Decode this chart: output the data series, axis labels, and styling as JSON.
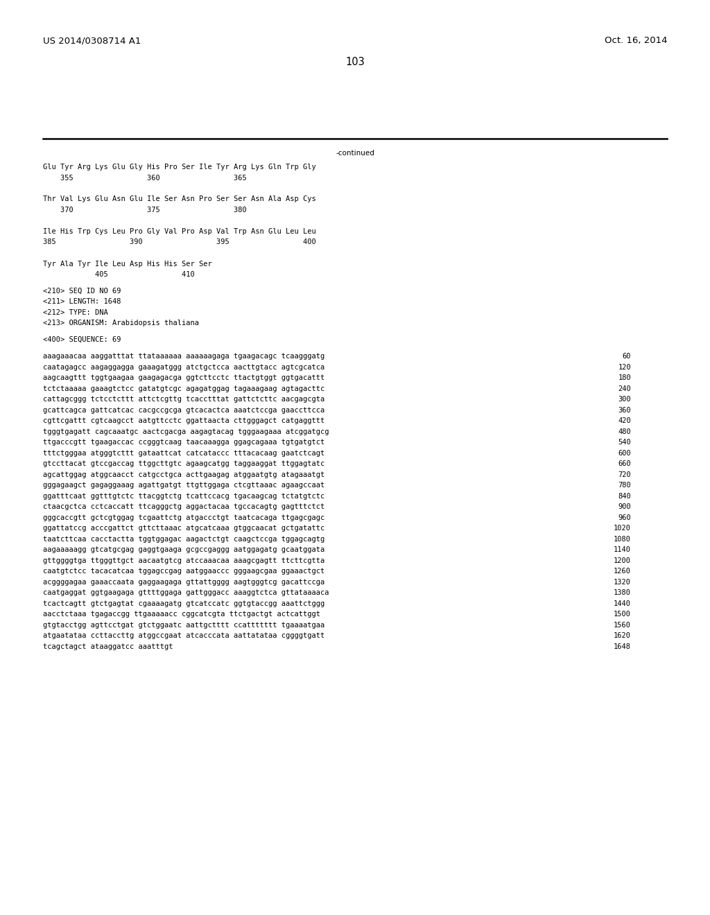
{
  "header_left": "US 2014/0308714 A1",
  "header_right": "Oct. 16, 2014",
  "page_number": "103",
  "continued_label": "-continued",
  "background_color": "#ffffff",
  "font_size_header": 9.5,
  "font_size_body": 7.5,
  "font_size_page": 10.5,
  "protein_lines": [
    "Glu Tyr Arg Lys Glu Gly His Pro Ser Ile Tyr Arg Lys Gln Trp Gly",
    "    355                 360                 365",
    "",
    "Thr Val Lys Glu Asn Glu Ile Ser Asn Pro Ser Ser Asn Ala Asp Cys",
    "    370                 375                 380",
    "",
    "Ile His Trp Cys Leu Pro Gly Val Pro Asp Val Trp Asn Glu Leu Leu",
    "385                 390                 395                 400",
    "",
    "Tyr Ala Tyr Ile Leu Asp His His Ser Ser",
    "            405                 410"
  ],
  "metadata_lines": [
    "<210> SEQ ID NO 69",
    "<211> LENGTH: 1648",
    "<212> TYPE: DNA",
    "<213> ORGANISM: Arabidopsis thaliana"
  ],
  "sequence_label": "<400> SEQUENCE: 69",
  "sequence_lines": [
    [
      "aaagaaacaa aaggatttat ttataaaaaa aaaaaagaga tgaagacagc tcaagggatg",
      "60"
    ],
    [
      "caatagagcc aagaggagga gaaagatggg atctgctcca aacttgtacc agtcgcatca",
      "120"
    ],
    [
      "aagcaagttt tggtgaagaa gaagagacga ggtcttcctc ttactgtggt ggtgacattt",
      "180"
    ],
    [
      "tctctaaaaa gaaagtctcc gatatgtcgc agagatggag tagaaagaag agtagacttc",
      "240"
    ],
    [
      "cattagcggg tctcctcttt attctcgttg tcacctttat gattctcttc aacgagcgta",
      "300"
    ],
    [
      "gcattcagca gattcatcac cacgccgcga gtcacactca aaatctccga gaaccttcca",
      "360"
    ],
    [
      "cgttcgattt cgtcaagcct aatgttcctc ggattaacta cttgggagct catgaggttt",
      "420"
    ],
    [
      "tgggtgagatt cagcaaatgc aactcgacga aagagtacag tgggaagaaa atcggatgcg",
      "480"
    ],
    [
      "ttgacccgtt tgaagaccac ccgggtcaag taacaaagga ggagcagaaa tgtgatgtct",
      "540"
    ],
    [
      "tttctgggaa atgggtcttt gataattcat catcataccc tttacacaag gaatctcagt",
      "600"
    ],
    [
      "gtccttacat gtccgaccag ttggcttgtc agaagcatgg taggaaggat ttggagtatc",
      "660"
    ],
    [
      "agcattggag atggcaacct catgcctgca acttgaagag atggaatgtg atagaaatgt",
      "720"
    ],
    [
      "gggagaagct gagaggaaag agattgatgt ttgttggaga ctcgttaaac agaagccaat",
      "780"
    ],
    [
      "ggatttcaat ggtttgtctc ttacggtctg tcattccacg tgacaagcag tctatgtctc",
      "840"
    ],
    [
      "ctaacgctca cctcaccatt ttcagggctg aggactacaa tgccacagtg gagtttctct",
      "900"
    ],
    [
      "gggcaccgtt gctcgtggag tcgaattctg atgaccctgt taatcacaga ttgagcgagc",
      "960"
    ],
    [
      "ggattatccg acccgattct gttcttaaac atgcatcaaa gtggcaacat gctgatattc",
      "1020"
    ],
    [
      "taatcttcaa cacctactta tggtggagac aagactctgt caagctccga tggagcagtg",
      "1080"
    ],
    [
      "aagaaaaagg gtcatgcgag gaggtgaaga gcgccgaggg aatggagatg gcaatggata",
      "1140"
    ],
    [
      "gttggggtga ttgggttgct aacaatgtcg atccaaacaa aaagcgagtt ttcttcgtta",
      "1200"
    ],
    [
      "caatgtctcc tacacatcaa tggagccgag aatggaaccc gggaagcgaa ggaaactgct",
      "1260"
    ],
    [
      "acggggagaa gaaaccaata gaggaagaga gttattgggg aagtgggtcg gacattccga",
      "1320"
    ],
    [
      "caatgaggat ggtgaagaga gttttggaga gattgggacc aaaggtctca gttataaaaca",
      "1380"
    ],
    [
      "tcactcagtt gtctgagtat cgaaaagatg gtcatccatc ggtgtaccgg aaattctggg",
      "1440"
    ],
    [
      "aacctctaaa tgagaccgg ttgaaaaacc cggcatcgta ttctgactgt actcattggt",
      "1500"
    ],
    [
      "gtgtacctgg agttcctgat gtctggaatc aattgctttt ccattttttt tgaaaatgaa",
      "1560"
    ],
    [
      "atgaatataa ccttaccttg atggccgaat atcacccata aattatataa cggggtgatt",
      "1620"
    ],
    [
      "tcagctagct ataaggatcc aaatttgt",
      "1648"
    ]
  ]
}
